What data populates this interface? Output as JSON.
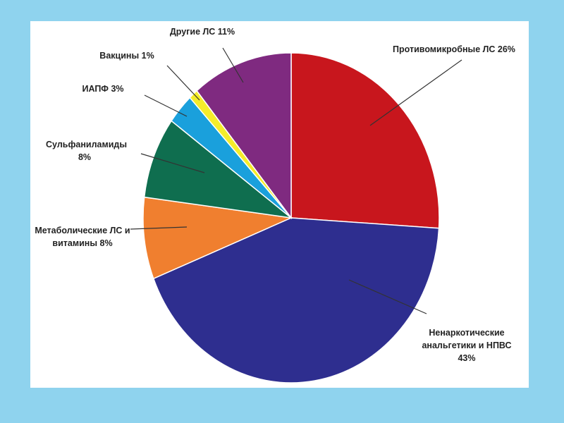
{
  "chart_data": {
    "type": "pie",
    "categories": [
      "Противомикробные ЛС",
      "Ненаркотические анальгетики и НПВС",
      "Метаболические ЛС и витамины",
      "Сульфаниламиды",
      "ИАПФ",
      "Вакцины",
      "Другие ЛС"
    ],
    "values": [
      26,
      43,
      8,
      8,
      3,
      1,
      11
    ],
    "value_labels": [
      "26%",
      "43%",
      "8%",
      "8%",
      "3%",
      "1%",
      "11%"
    ],
    "colors": [
      "#c8161d",
      "#2e2e8f",
      "#f07f2f",
      "#0f6e4f",
      "#1aa0dc",
      "#f5ec2a",
      "#7f2a80"
    ]
  }
}
